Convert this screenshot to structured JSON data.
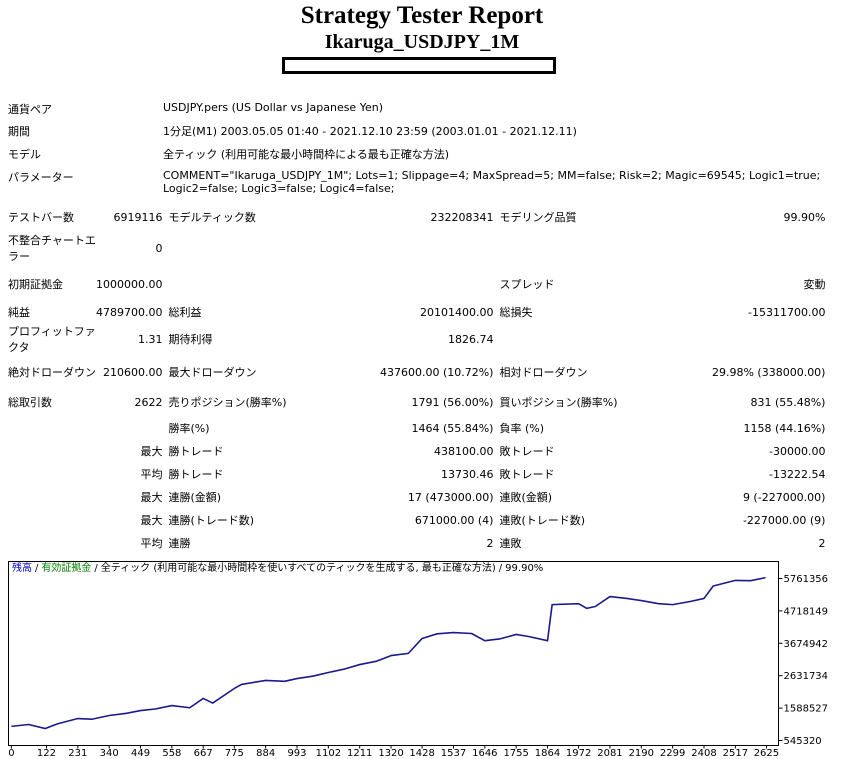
{
  "header": {
    "title": "Strategy Tester Report",
    "subtitle": "Ikaruga_USDJPY_1M"
  },
  "info": [
    {
      "label": "通貨ペア",
      "value": "USDJPY.pers (US Dollar vs Japanese Yen)"
    },
    {
      "label": "期間",
      "value": "1分足(M1) 2003.05.05 01:40 - 2021.12.10 23:59 (2003.01.01 - 2021.12.11)"
    },
    {
      "label": "モデル",
      "value": "全ティック (利用可能な最小時間枠による最も正確な方法)"
    },
    {
      "label": "パラメーター",
      "value": "COMMENT=\"Ikaruga_USDJPY_1M\"; Lots=1; Slippage=4; MaxSpread=5; MM=false; Risk=2; Magic=69545; Logic1=true; Logic2=false; Logic3=false; Logic4=false;"
    }
  ],
  "stats": {
    "rows": [
      [
        "テストバー数",
        "6919116",
        "モデルティック数",
        "232208341",
        "モデリング品質",
        "99.90%"
      ],
      [
        "不整合チャートエラー",
        "0",
        null,
        null,
        null,
        null
      ],
      [
        "初期証拠金",
        "1000000.00",
        null,
        null,
        "スプレッド",
        "変動"
      ],
      [
        "純益",
        "4789700.00",
        "総利益",
        "20101400.00",
        "総損失",
        "-15311700.00"
      ],
      [
        "プロフィットファクタ",
        "1.31",
        "期待利得",
        "1826.74",
        null,
        null
      ],
      [
        "絶対ドローダウン",
        "210600.00",
        "最大ドローダウン",
        "437600.00 (10.72%)",
        "相対ドローダウン",
        "29.98% (338000.00)"
      ],
      [
        "総取引数",
        "2622",
        "売りポジション(勝率%)",
        "1791 (56.00%)",
        "買いポジション(勝率%)",
        "831 (55.48%)"
      ],
      [
        null,
        null,
        "勝率(%)",
        "1464 (55.84%)",
        "負率 (%)",
        "1158 (44.16%)"
      ],
      [
        null,
        "最大",
        "勝トレード",
        "438100.00",
        "敗トレード",
        "-30000.00"
      ],
      [
        null,
        "平均",
        "勝トレード",
        "13730.46",
        "敗トレード",
        "-13222.54"
      ],
      [
        null,
        "最大",
        "連勝(金額)",
        "17 (473000.00)",
        "連敗(金額)",
        "9 (-227000.00)"
      ],
      [
        null,
        "最大",
        "連勝(トレード数)",
        "671000.00 (4)",
        "連敗(トレード数)",
        "-227000.00 (9)"
      ],
      [
        null,
        "平均",
        "連勝",
        "2",
        "連敗",
        "2"
      ]
    ]
  },
  "chart_data": {
    "type": "line",
    "legend": [
      {
        "text": "残高",
        "color": "#0000cc"
      },
      {
        "text": "有効証拠金",
        "color": "#008000"
      },
      {
        "text": "全ティック (利用可能な最小時間枠を使いすべてのティックを生成する, 最も正確な方法)",
        "color": "#000000"
      },
      {
        "text": "99.90%",
        "color": "#000000"
      }
    ],
    "separator": "/",
    "series": [
      {
        "color": "#1a1a8c",
        "x": [
          0,
          60,
          118,
          160,
          231,
          280,
          340,
          400,
          449,
          500,
          558,
          620,
          667,
          700,
          775,
          800,
          884,
          950,
          993,
          1050,
          1102,
          1160,
          1211,
          1270,
          1320,
          1380,
          1428,
          1480,
          1537,
          1600,
          1646,
          1700,
          1755,
          1800,
          1864,
          1880,
          1972,
          2000,
          2030,
          2081,
          2140,
          2190,
          2250,
          2299,
          2360,
          2408,
          2440,
          2517,
          2570,
          2622
        ],
        "values": [
          1000000,
          1060000,
          930000,
          1080000,
          1253000,
          1230000,
          1350000,
          1420000,
          1510000,
          1560000,
          1670000,
          1600000,
          1900000,
          1750000,
          2220000,
          2350000,
          2480000,
          2450000,
          2540000,
          2620000,
          2735000,
          2850000,
          2990000,
          3100000,
          3280000,
          3350000,
          3830000,
          3980000,
          4020000,
          3990000,
          3760000,
          3820000,
          3960000,
          3890000,
          3760000,
          4920000,
          4950000,
          4800000,
          4860000,
          5180000,
          5120000,
          5050000,
          4950000,
          4920000,
          5020000,
          5120000,
          5520000,
          5700000,
          5690000,
          5789700
        ]
      }
    ],
    "xlim": [
      -10,
      2667
    ],
    "xticks": [
      0,
      122,
      231,
      340,
      449,
      558,
      667,
      775,
      884,
      993,
      1102,
      1211,
      1320,
      1428,
      1537,
      1646,
      1755,
      1864,
      1972,
      2081,
      2190,
      2299,
      2408,
      2517,
      2625
    ],
    "ylim": [
      384300,
      6308700
    ],
    "yticks": [
      545320,
      1588527,
      2631734,
      3674942,
      4718149,
      5761356
    ]
  }
}
